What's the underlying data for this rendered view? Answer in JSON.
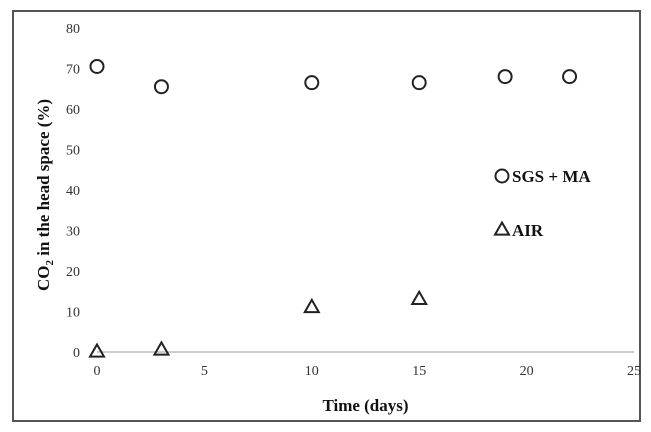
{
  "chart_data": {
    "type": "scatter",
    "title": "",
    "xlabel": "Time (days)",
    "ylabel_main": "CO",
    "ylabel_sub": "2",
    "ylabel_rest": " in the head space (%)",
    "xlim": [
      0,
      25
    ],
    "ylim": [
      0,
      80
    ],
    "xticks": [
      0,
      5,
      10,
      15,
      20,
      25
    ],
    "yticks": [
      0,
      10,
      20,
      30,
      40,
      50,
      60,
      70,
      80
    ],
    "grid": false,
    "legend_position": "right",
    "series": [
      {
        "name": "SGS + MA",
        "marker": "circle",
        "color": "#222222",
        "x": [
          0,
          3,
          10,
          15,
          19,
          22
        ],
        "y": [
          70.5,
          65.5,
          66.5,
          66.5,
          68,
          68
        ]
      },
      {
        "name": "AIR",
        "marker": "triangle",
        "color": "#222222",
        "x": [
          0,
          3,
          10,
          15
        ],
        "y": [
          0,
          0.5,
          11,
          13
        ]
      }
    ]
  }
}
